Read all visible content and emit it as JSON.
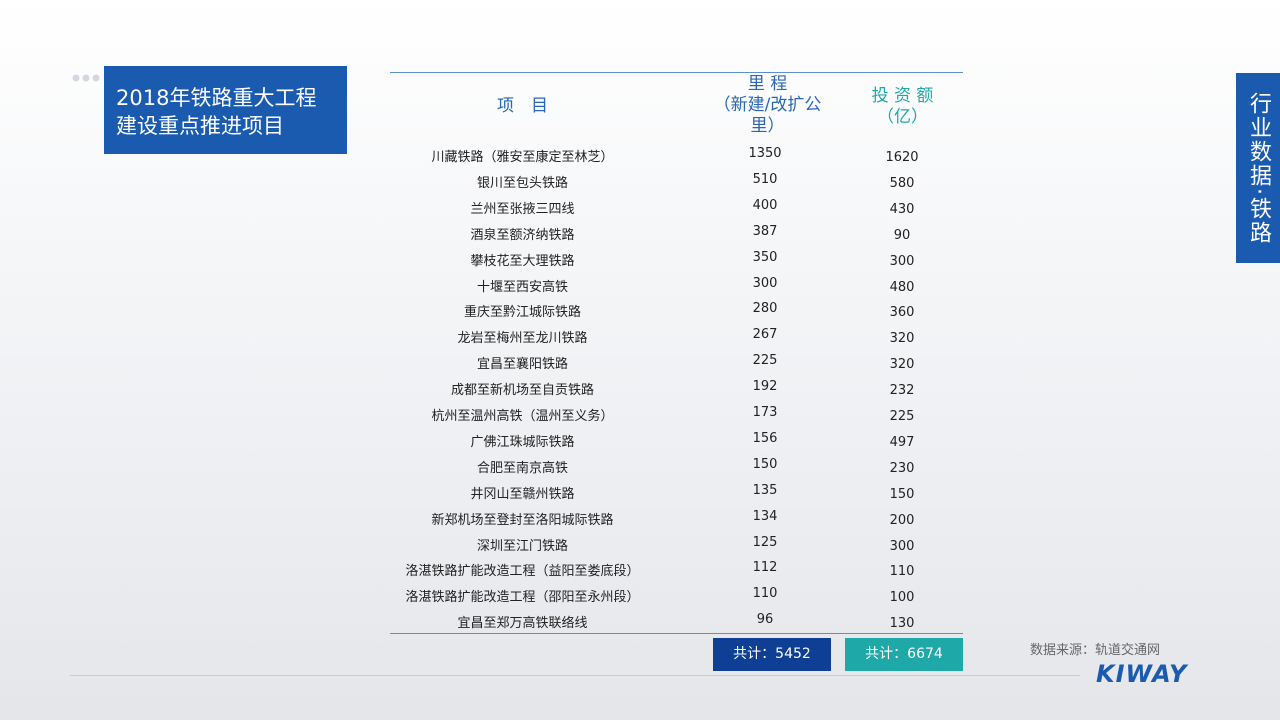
{
  "title_box": {
    "lines": [
      "2018年铁路重大工程",
      "建设重点推进项目"
    ]
  },
  "side_tab": {
    "text": "行业数据·铁路"
  },
  "table": {
    "header": {
      "project": "项　目",
      "mileage": [
        "里 程",
        "（新建/改扩公里）"
      ],
      "investment": [
        "投 资 额",
        "（亿）"
      ]
    },
    "rows": [
      [
        "川藏铁路（雅安至康定至林芝）",
        "1350",
        "1620"
      ],
      [
        "银川至包头铁路",
        "510",
        "580"
      ],
      [
        "兰州至张掖三四线",
        "400",
        "430"
      ],
      [
        "酒泉至额济纳铁路",
        "387",
        "90"
      ],
      [
        "攀枝花至大理铁路",
        "350",
        "300"
      ],
      [
        "十堰至西安高铁",
        "300",
        "480"
      ],
      [
        "重庆至黔江城际铁路",
        "280",
        "360"
      ],
      [
        "龙岩至梅州至龙川铁路",
        "267",
        "320"
      ],
      [
        "宜昌至襄阳铁路",
        "225",
        "320"
      ],
      [
        "成都至新机场至自贡铁路",
        "192",
        "232"
      ],
      [
        "杭州至温州高铁（温州至义务）",
        "173",
        "225"
      ],
      [
        "广佛江珠城际铁路",
        "156",
        "497"
      ],
      [
        "合肥至南京高铁",
        "150",
        "230"
      ],
      [
        "井冈山至赣州铁路",
        "135",
        "150"
      ],
      [
        "新郑机场至登封至洛阳城际铁路",
        "134",
        "200"
      ],
      [
        "深圳至江门铁路",
        "125",
        "300"
      ],
      [
        "洛湛铁路扩能改造工程（益阳至娄底段）",
        "112",
        "110"
      ],
      [
        "洛湛铁路扩能改造工程（邵阳至永州段）",
        "110",
        "100"
      ],
      [
        "宜昌至郑万高铁联络线",
        "96",
        "130"
      ]
    ],
    "totals": [
      "共计：5452",
      "共计：6674"
    ]
  },
  "footer": {
    "source": "数据来源：轨道交通网",
    "logo": "KIWAY"
  }
}
